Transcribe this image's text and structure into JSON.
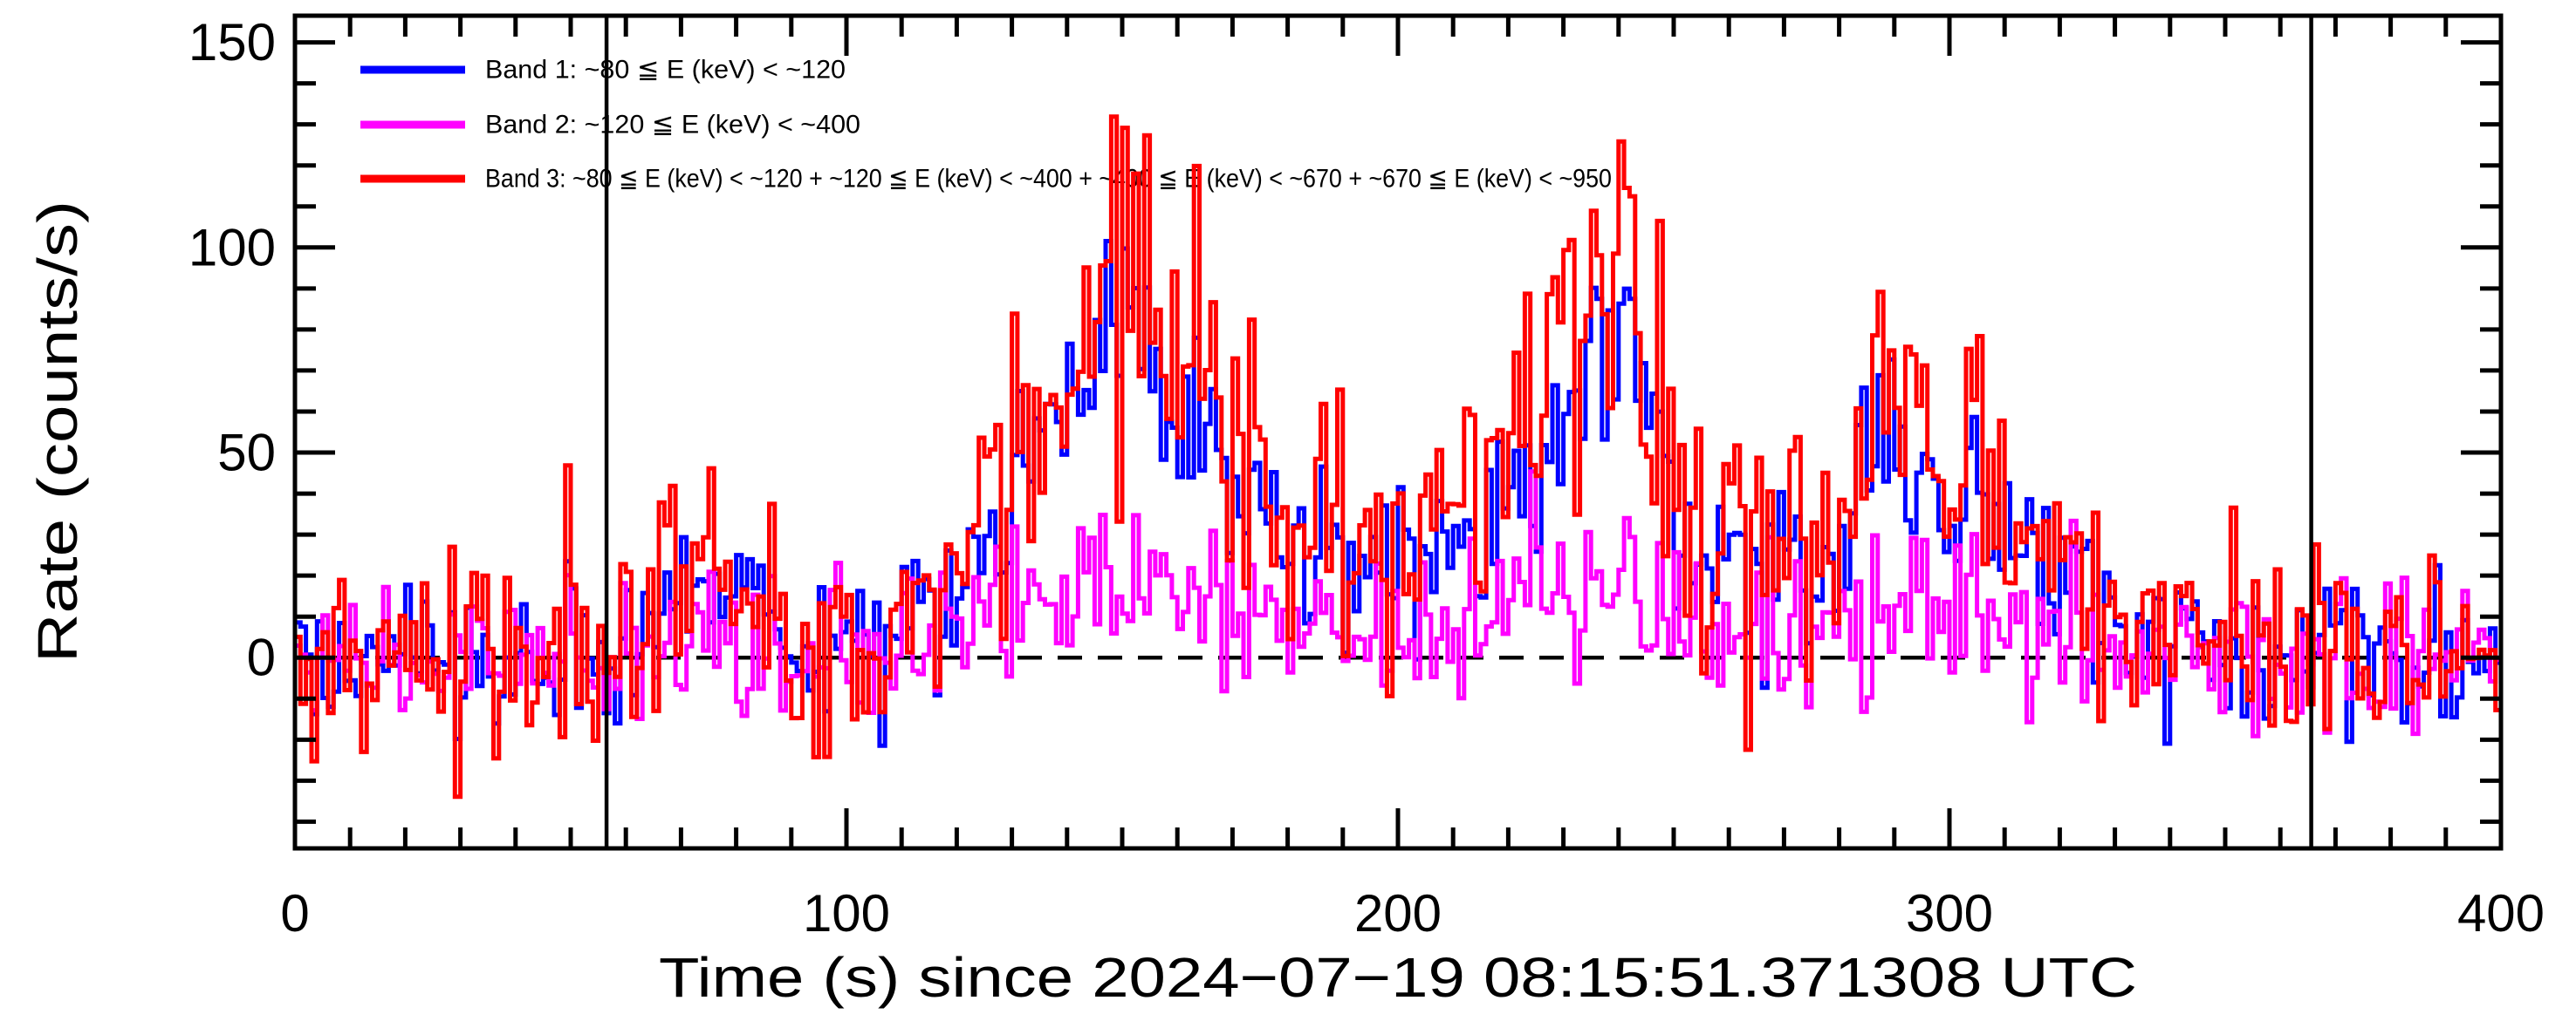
{
  "figure": {
    "background": "#ffffff",
    "frame_color": "#000000"
  },
  "axes": {
    "x": {
      "title": "Time (s) since 2024−07−19 08:15:51.371308 UTC",
      "lim": [
        0,
        400
      ],
      "major_ticks": [
        0,
        100,
        200,
        300,
        400
      ],
      "major_tick_labels": [
        "0",
        "100",
        "200",
        "300",
        "400"
      ],
      "minor_step": 10
    },
    "y": {
      "title": "Rate (counts/s)",
      "lim": [
        -46.5,
        156.5
      ],
      "major_ticks": [
        0,
        50,
        100,
        150
      ],
      "major_tick_labels": [
        "0",
        "50",
        "100",
        "150"
      ],
      "minor_step": 10
    }
  },
  "legend": {
    "entries": [
      {
        "name": "Band 1",
        "label": "Band 1: ~80 ≦ E (keV) < ~120",
        "color": "#0000ff"
      },
      {
        "name": "Band 2",
        "label": "Band 2: ~120 ≦ E (keV) < ~400",
        "color": "#ff00ff"
      },
      {
        "name": "Band 3",
        "label": "Band 3: ~80 ≦ E (keV) < ~120 + ~120 ≦ E (keV) < ~400 + ~400 ≦ E (keV) < ~670 + ~670 ≦ E (keV) < ~950",
        "color": "#ff0000"
      }
    ]
  },
  "reference_lines": {
    "zero_dashed_y": 0,
    "zero_line_color": "#000000",
    "vertical_markers": [
      56.5,
      365.6
    ],
    "marker_color": "#000000"
  },
  "chart_data": {
    "type": "line",
    "style": "step-histogram",
    "title": "",
    "xlabel": "Time (s) since 2024−07−19 08:15:51.371308 UTC",
    "ylabel": "Rate (counts/s)",
    "xlim": [
      0,
      400
    ],
    "ylim": [
      -46.5,
      156.5
    ],
    "x_bin_seconds": 1,
    "n_bins": 400,
    "grid": false,
    "legend_position": "top-left-inside",
    "noise_seed": 20240719,
    "red_mix": [
      0.45,
      0.3,
      0.85
    ],
    "series": [
      {
        "name": "Band 1 (~80-120 keV)",
        "color": "#0000ff",
        "noise": {
          "base": 9,
          "scale": 0.1
        },
        "envelope": [
          [
            0,
            0
          ],
          [
            55,
            0
          ],
          [
            62,
            3
          ],
          [
            70,
            9
          ],
          [
            78,
            15
          ],
          [
            85,
            11
          ],
          [
            92,
            4
          ],
          [
            100,
            2
          ],
          [
            108,
            3
          ],
          [
            115,
            10
          ],
          [
            122,
            22
          ],
          [
            128,
            37
          ],
          [
            134,
            48
          ],
          [
            140,
            55
          ],
          [
            145,
            66
          ],
          [
            148,
            79
          ],
          [
            151,
            90
          ],
          [
            153,
            76
          ],
          [
            157,
            63
          ],
          [
            162,
            52
          ],
          [
            167,
            50
          ],
          [
            172,
            40
          ],
          [
            178,
            34
          ],
          [
            185,
            29
          ],
          [
            192,
            26
          ],
          [
            200,
            24
          ],
          [
            207,
            25
          ],
          [
            213,
            32
          ],
          [
            218,
            40
          ],
          [
            224,
            49
          ],
          [
            229,
            57
          ],
          [
            234,
            64
          ],
          [
            239,
            69
          ],
          [
            243,
            62
          ],
          [
            247,
            52
          ],
          [
            251,
            42
          ],
          [
            255,
            33
          ],
          [
            260,
            25
          ],
          [
            265,
            21
          ],
          [
            270,
            19
          ],
          [
            275,
            21
          ],
          [
            280,
            32
          ],
          [
            285,
            42
          ],
          [
            290,
            50
          ],
          [
            295,
            47
          ],
          [
            300,
            41
          ],
          [
            305,
            36
          ],
          [
            310,
            32
          ],
          [
            315,
            26
          ],
          [
            320,
            19
          ],
          [
            326,
            13
          ],
          [
            332,
            8
          ],
          [
            340,
            4
          ],
          [
            350,
            1
          ],
          [
            360,
            0
          ],
          [
            400,
            0
          ]
        ]
      },
      {
        "name": "Band 2 (~120-400 keV)",
        "color": "#ff00ff",
        "noise": {
          "base": 8.5,
          "scale": 0.1
        },
        "envelope": [
          [
            0,
            0
          ],
          [
            55,
            0
          ],
          [
            70,
            3
          ],
          [
            78,
            5
          ],
          [
            85,
            3
          ],
          [
            100,
            0
          ],
          [
            115,
            3
          ],
          [
            122,
            7
          ],
          [
            128,
            11
          ],
          [
            134,
            14
          ],
          [
            140,
            16
          ],
          [
            145,
            19
          ],
          [
            148,
            23
          ],
          [
            151,
            27
          ],
          [
            153,
            22
          ],
          [
            157,
            17
          ],
          [
            162,
            13
          ],
          [
            167,
            12
          ],
          [
            172,
            10
          ],
          [
            178,
            9
          ],
          [
            185,
            8
          ],
          [
            192,
            7
          ],
          [
            200,
            7
          ],
          [
            207,
            7
          ],
          [
            213,
            9
          ],
          [
            218,
            11
          ],
          [
            224,
            13
          ],
          [
            229,
            14
          ],
          [
            234,
            15
          ],
          [
            239,
            16
          ],
          [
            243,
            14
          ],
          [
            247,
            12
          ],
          [
            251,
            10
          ],
          [
            255,
            9
          ],
          [
            260,
            7
          ],
          [
            265,
            5
          ],
          [
            270,
            4
          ],
          [
            275,
            5
          ],
          [
            280,
            7
          ],
          [
            285,
            9
          ],
          [
            290,
            11
          ],
          [
            295,
            10
          ],
          [
            300,
            8
          ],
          [
            305,
            8
          ],
          [
            310,
            8
          ],
          [
            315,
            6
          ],
          [
            320,
            5
          ],
          [
            326,
            3
          ],
          [
            332,
            2
          ],
          [
            340,
            1
          ],
          [
            350,
            0
          ],
          [
            400,
            0
          ]
        ]
      },
      {
        "name": "Band 3 (sum ~80-950 keV)",
        "color": "#ff0000",
        "noise": {
          "base": 13.5,
          "scale": 0.12
        },
        "envelope": [
          [
            0,
            0
          ],
          [
            55,
            0
          ],
          [
            62,
            4
          ],
          [
            70,
            12
          ],
          [
            78,
            20
          ],
          [
            85,
            14
          ],
          [
            92,
            5
          ],
          [
            100,
            2
          ],
          [
            108,
            4
          ],
          [
            115,
            12
          ],
          [
            122,
            28
          ],
          [
            128,
            45
          ],
          [
            134,
            58
          ],
          [
            140,
            66
          ],
          [
            145,
            80
          ],
          [
            148,
            95
          ],
          [
            151,
            108
          ],
          [
            153,
            92
          ],
          [
            157,
            76
          ],
          [
            162,
            62
          ],
          [
            167,
            60
          ],
          [
            172,
            48
          ],
          [
            178,
            41
          ],
          [
            185,
            35
          ],
          [
            192,
            31
          ],
          [
            200,
            28
          ],
          [
            207,
            30
          ],
          [
            213,
            38
          ],
          [
            218,
            48
          ],
          [
            224,
            58
          ],
          [
            229,
            68
          ],
          [
            234,
            76
          ],
          [
            239,
            82
          ],
          [
            243,
            74
          ],
          [
            247,
            62
          ],
          [
            251,
            50
          ],
          [
            255,
            40
          ],
          [
            260,
            30
          ],
          [
            265,
            25
          ],
          [
            270,
            22
          ],
          [
            275,
            25
          ],
          [
            280,
            38
          ],
          [
            285,
            50
          ],
          [
            290,
            60
          ],
          [
            295,
            55
          ],
          [
            300,
            48
          ],
          [
            305,
            42
          ],
          [
            310,
            38
          ],
          [
            315,
            30
          ],
          [
            320,
            22
          ],
          [
            326,
            15
          ],
          [
            332,
            10
          ],
          [
            340,
            6
          ],
          [
            350,
            2
          ],
          [
            360,
            1
          ],
          [
            400,
            1
          ]
        ]
      }
    ]
  }
}
